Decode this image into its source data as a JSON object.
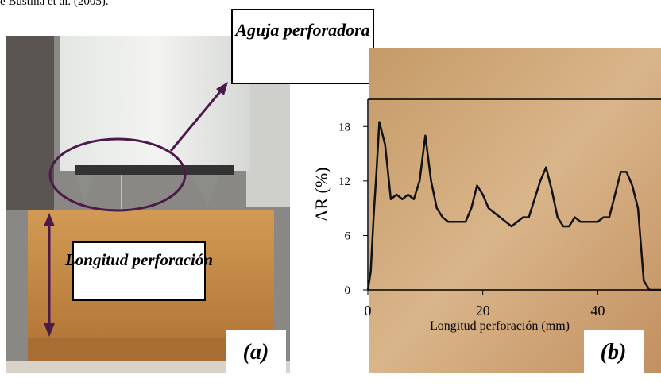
{
  "caption_fragment": "e Bustina et al. (2005).",
  "figure_a": {
    "needle_label": "Aguja perforadora",
    "length_label": "Longitud perforación",
    "panel_label": "(a)"
  },
  "figure_b": {
    "panel_label": "(b)"
  },
  "chart_data": {
    "type": "line",
    "ylabel": "AR (%)",
    "xlabel": "Longitud perforación (mm)",
    "x": [
      0,
      0.5,
      1,
      1.5,
      2,
      3,
      4,
      5,
      6,
      7,
      8,
      9,
      10,
      11,
      12,
      13,
      14,
      15,
      16,
      17,
      18,
      19,
      20,
      21,
      22,
      23,
      24,
      25,
      26,
      27,
      28,
      29,
      30,
      31,
      32,
      33,
      34,
      35,
      36,
      37,
      38,
      39,
      40,
      41,
      42,
      43,
      44,
      45,
      46,
      47,
      48,
      49,
      51
    ],
    "series": [
      {
        "color": "#111111",
        "values": [
          0,
          2,
          8,
          13,
          18.5,
          16,
          10,
          10.5,
          10,
          10.5,
          10,
          12,
          17,
          12,
          9,
          8,
          7.5,
          7.5,
          7.5,
          7.5,
          9,
          11.5,
          10.5,
          9,
          8.5,
          8,
          7.5,
          7,
          7.5,
          8,
          8,
          10,
          12,
          13.5,
          11,
          8,
          7,
          7,
          8,
          7.5,
          7.5,
          7.5,
          7.5,
          8,
          8,
          10.5,
          13,
          13,
          11.5,
          9,
          1,
          0,
          0
        ]
      }
    ],
    "xlim": [
      0,
      51
    ],
    "ylim": [
      0,
      21
    ],
    "xticks": [
      0,
      20,
      40
    ],
    "yticks": [
      0,
      6,
      12,
      18
    ]
  }
}
